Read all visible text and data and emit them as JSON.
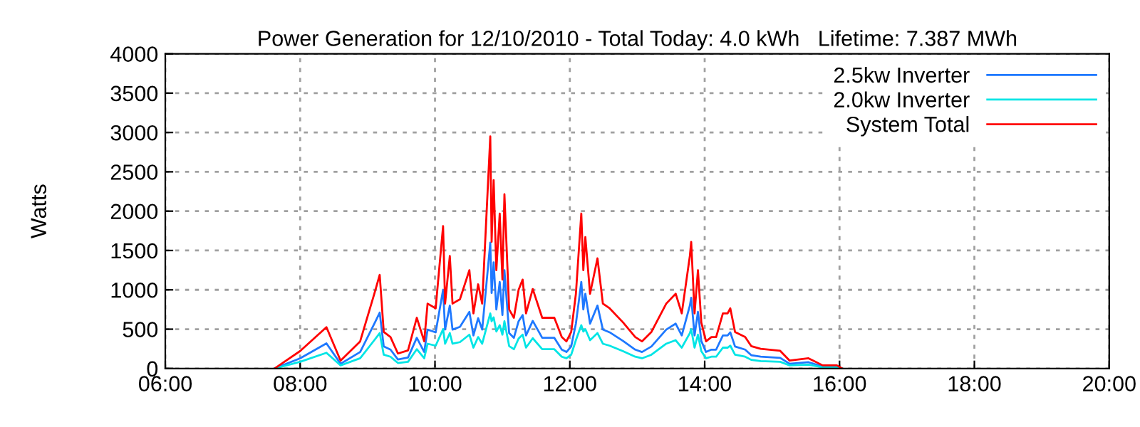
{
  "chart_data": {
    "type": "line",
    "title": "Power Generation for 12/10/2010 - Total Today: 4.0 kWh   Lifetime: 7.387 MWh",
    "ylabel": "Watts",
    "x": [
      7.62,
      8.0,
      8.39,
      8.6,
      8.89,
      9.1,
      9.18,
      9.24,
      9.34,
      9.45,
      9.6,
      9.73,
      9.84,
      9.89,
      10.01,
      10.12,
      10.15,
      10.22,
      10.26,
      10.37,
      10.51,
      10.57,
      10.64,
      10.7,
      10.82,
      10.84,
      10.87,
      10.91,
      10.96,
      11.0,
      11.03,
      11.1,
      11.17,
      11.24,
      11.3,
      11.35,
      11.45,
      11.59,
      11.77,
      11.88,
      11.95,
      12.02,
      12.09,
      12.17,
      12.2,
      12.23,
      12.3,
      12.41,
      12.49,
      12.59,
      12.79,
      12.97,
      13.07,
      13.21,
      13.43,
      13.57,
      13.66,
      13.78,
      13.8,
      13.85,
      13.9,
      13.95,
      14.02,
      14.1,
      14.17,
      14.27,
      14.34,
      14.38,
      14.45,
      14.6,
      14.69,
      14.83,
      15.12,
      15.26,
      15.54,
      15.75,
      15.96,
      16.04
    ],
    "series": [
      {
        "name": "2.5kw Inverter",
        "color": "#1e78ff",
        "values": [
          0,
          130,
          320,
          60,
          210,
          570,
          710,
          280,
          240,
          115,
          140,
          390,
          210,
          495,
          460,
          1000,
          495,
          800,
          495,
          530,
          720,
          420,
          640,
          495,
          1600,
          960,
          1350,
          750,
          1100,
          680,
          1250,
          450,
          390,
          600,
          680,
          420,
          605,
          390,
          390,
          240,
          210,
          280,
          570,
          1100,
          750,
          950,
          570,
          800,
          495,
          460,
          350,
          240,
          210,
          280,
          495,
          570,
          420,
          800,
          900,
          420,
          720,
          350,
          210,
          240,
          240,
          420,
          420,
          460,
          280,
          240,
          170,
          150,
          135,
          60,
          80,
          25,
          25,
          0
        ]
      },
      {
        "name": "2.0kw Inverter",
        "color": "#00e5e5",
        "values": [
          0,
          85,
          200,
          40,
          130,
          360,
          450,
          175,
          150,
          70,
          85,
          245,
          130,
          315,
          290,
          500,
          315,
          450,
          315,
          335,
          430,
          265,
          400,
          315,
          700,
          600,
          650,
          470,
          550,
          430,
          600,
          285,
          245,
          380,
          430,
          265,
          385,
          245,
          245,
          150,
          130,
          175,
          360,
          550,
          470,
          500,
          360,
          450,
          315,
          290,
          220,
          150,
          130,
          175,
          315,
          360,
          265,
          450,
          500,
          265,
          430,
          220,
          130,
          150,
          150,
          265,
          265,
          290,
          175,
          150,
          110,
          95,
          85,
          40,
          50,
          15,
          15,
          0
        ]
      },
      {
        "name": "System Total",
        "color": "#ff0000",
        "values": [
          0,
          222,
          525,
          100,
          345,
          950,
          1190,
          465,
          400,
          190,
          230,
          645,
          345,
          825,
          765,
          1810,
          825,
          1430,
          825,
          880,
          1250,
          700,
          1070,
          825,
          2950,
          1610,
          2395,
          1250,
          1970,
          1130,
          2215,
          750,
          645,
          1000,
          1130,
          700,
          1010,
          645,
          645,
          400,
          345,
          465,
          950,
          1970,
          1250,
          1670,
          950,
          1400,
          825,
          765,
          585,
          400,
          345,
          465,
          825,
          950,
          700,
          1430,
          1610,
          700,
          1250,
          585,
          345,
          400,
          400,
          700,
          700,
          765,
          465,
          400,
          285,
          250,
          225,
          100,
          130,
          40,
          40,
          0
        ]
      }
    ],
    "xlim": [
      6,
      20
    ],
    "xticks": [
      {
        "value": 6,
        "label": "06:00"
      },
      {
        "value": 8,
        "label": "08:00"
      },
      {
        "value": 10,
        "label": "10:00"
      },
      {
        "value": 12,
        "label": "12:00"
      },
      {
        "value": 14,
        "label": "14:00"
      },
      {
        "value": 16,
        "label": "16:00"
      },
      {
        "value": 18,
        "label": "18:00"
      },
      {
        "value": 20,
        "label": "20:00"
      }
    ],
    "ylim": [
      0,
      4000
    ],
    "yticks": [
      0,
      500,
      1000,
      1500,
      2000,
      2500,
      3000,
      3500,
      4000
    ],
    "grid": true,
    "legend": "top right",
    "line_style": "solid"
  }
}
